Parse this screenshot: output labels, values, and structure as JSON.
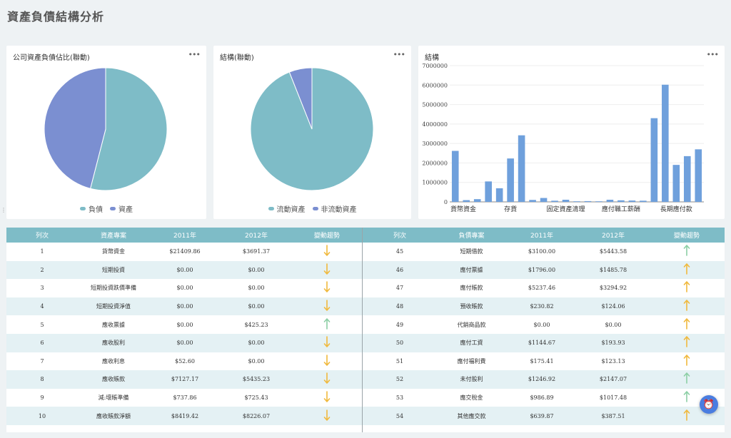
{
  "page": {
    "title": "資產負債結構分析"
  },
  "cards": {
    "pie1": {
      "title": "公司資產負債佔比(聯動)",
      "legend": [
        {
          "label": "負債",
          "color": "#7ebcc7"
        },
        {
          "label": "資產",
          "color": "#7b8fd1"
        }
      ]
    },
    "pie2": {
      "title": "結構(聯動)",
      "legend": [
        {
          "label": "流動資產",
          "color": "#7ebcc7"
        },
        {
          "label": "非流動資產",
          "color": "#7b8fd1"
        }
      ]
    },
    "bar": {
      "title": "結構"
    }
  },
  "chart_data": [
    {
      "type": "pie",
      "title": "公司資產負債佔比(聯動)",
      "labels": [
        "負債",
        "資產"
      ],
      "values": [
        54,
        46
      ],
      "colors": [
        "#7ebcc7",
        "#7b8fd1"
      ]
    },
    {
      "type": "pie",
      "title": "結構(聯動)",
      "labels": [
        "流動資產",
        "非流動資產"
      ],
      "values": [
        94,
        6
      ],
      "colors": [
        "#7ebcc7",
        "#7b8fd1"
      ]
    },
    {
      "type": "bar",
      "title": "結構",
      "ylim": [
        0,
        7000000
      ],
      "yticks": [
        0,
        1000000,
        2000000,
        3000000,
        4000000,
        5000000,
        6000000,
        7000000
      ],
      "xtick_labels": [
        "貨幣資金",
        "存貨",
        "固定資產清理",
        "應付職工薪酬",
        "長期應付款"
      ],
      "xtick_positions": [
        1,
        6,
        11,
        16,
        21
      ],
      "values": [
        2620000,
        90000,
        140000,
        1050000,
        700000,
        2230000,
        3420000,
        100000,
        200000,
        60000,
        110000,
        30000,
        40000,
        30000,
        110000,
        80000,
        70000,
        60000,
        4300000,
        6020000,
        1900000,
        2350000,
        2700000
      ],
      "color": "#6fa0dc"
    }
  ],
  "table_left": {
    "headers": [
      "列次",
      "資產專案",
      "2011年",
      "2012年",
      "變動趨勢"
    ],
    "rows": [
      {
        "n": "1",
        "item": "貨幣資金",
        "y2011": "$21409.86",
        "y2012": "$3691.37",
        "trend": "down"
      },
      {
        "n": "2",
        "item": "短期投資",
        "y2011": "$0.00",
        "y2012": "$0.00",
        "trend": "down"
      },
      {
        "n": "3",
        "item": "短期投資跌價準備",
        "y2011": "$0.00",
        "y2012": "$0.00",
        "trend": "down"
      },
      {
        "n": "4",
        "item": "短期投資淨值",
        "y2011": "$0.00",
        "y2012": "$0.00",
        "trend": "down"
      },
      {
        "n": "5",
        "item": "應收票據",
        "y2011": "$0.00",
        "y2012": "$425.23",
        "trend": "up-green"
      },
      {
        "n": "6",
        "item": "應收股利",
        "y2011": "$0.00",
        "y2012": "$0.00",
        "trend": "down"
      },
      {
        "n": "7",
        "item": "應收利息",
        "y2011": "$52.60",
        "y2012": "$0.00",
        "trend": "down"
      },
      {
        "n": "8",
        "item": "應收賬款",
        "y2011": "$7127.17",
        "y2012": "$5435.23",
        "trend": "down"
      },
      {
        "n": "9",
        "item": "減:壞賬準備",
        "y2011": "$737.86",
        "y2012": "$725.43",
        "trend": "down"
      },
      {
        "n": "10",
        "item": "應收賬款淨額",
        "y2011": "$8419.42",
        "y2012": "$8226.07",
        "trend": "down"
      }
    ]
  },
  "table_right": {
    "headers": [
      "列次",
      "負債專案",
      "2011年",
      "2012年",
      "變動趨勢"
    ],
    "rows": [
      {
        "n": "45",
        "item": "短期借款",
        "y2011": "$3100.00",
        "y2012": "$5443.58",
        "trend": "up-green"
      },
      {
        "n": "46",
        "item": "應付票據",
        "y2011": "$1796.00",
        "y2012": "$1485.78",
        "trend": "up"
      },
      {
        "n": "47",
        "item": "應付賬款",
        "y2011": "$5237.46",
        "y2012": "$3294.92",
        "trend": "up"
      },
      {
        "n": "48",
        "item": "預收賬款",
        "y2011": "$230.82",
        "y2012": "$124.06",
        "trend": "up"
      },
      {
        "n": "49",
        "item": "代銷商品款",
        "y2011": "$0.00",
        "y2012": "$0.00",
        "trend": "up"
      },
      {
        "n": "50",
        "item": "應付工資",
        "y2011": "$1144.67",
        "y2012": "$193.93",
        "trend": "up"
      },
      {
        "n": "51",
        "item": "應付福利費",
        "y2011": "$175.41",
        "y2012": "$123.13",
        "trend": "up"
      },
      {
        "n": "52",
        "item": "未付股利",
        "y2011": "$1246.92",
        "y2012": "$2147.07",
        "trend": "up-green"
      },
      {
        "n": "53",
        "item": "應交稅金",
        "y2011": "$986.89",
        "y2012": "$1017.48",
        "trend": "up-green"
      },
      {
        "n": "54",
        "item": "其他應交款",
        "y2011": "$639.87",
        "y2012": "$387.51",
        "trend": "up"
      }
    ]
  },
  "colors": {
    "arrow_down": "#f0b93d",
    "arrow_up": "#f0b93d",
    "arrow_up_green": "#8ccfa5",
    "header_bg": "#7ebcc7",
    "row_alt": "#e4f1f4"
  },
  "icons": {
    "more": "more-horizontal-icon",
    "fab": "alarm-icon"
  }
}
